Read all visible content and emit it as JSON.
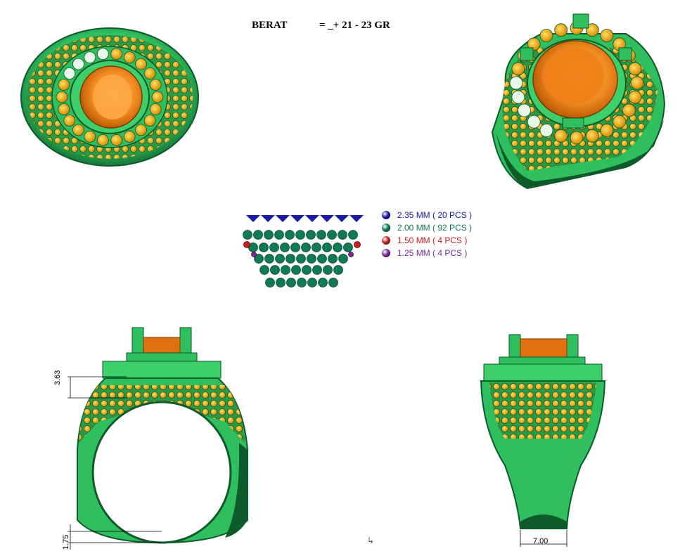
{
  "header": {
    "weight_label": "BERAT",
    "weight_value": "= _+ 21 - 23 GR"
  },
  "legend": [
    {
      "label": "2.35 MM ( 20 PCS )",
      "color": "#1a1aa6"
    },
    {
      "label": "2.00 MM ( 92  PCS )",
      "color": "#0f7a55"
    },
    {
      "label": "1.50 MM ( 4 PCS )",
      "color": "#c81e1e"
    },
    {
      "label": "1.25 MM ( 4 PCS )",
      "color": "#7a2a9a"
    }
  ],
  "dimensions": {
    "top_height": "3.63",
    "bottom_thickness": "1.75",
    "shank_width": "7.00"
  },
  "colors": {
    "metal": "#2fbf5f",
    "metal_dark": "#0d5a2a",
    "metal_light": "#7fe39a",
    "gold_stone": "#f0a800",
    "center_stone": "#f08a20",
    "center_stone_light": "#ffa94a",
    "white_stone": "#e8f7e8"
  }
}
